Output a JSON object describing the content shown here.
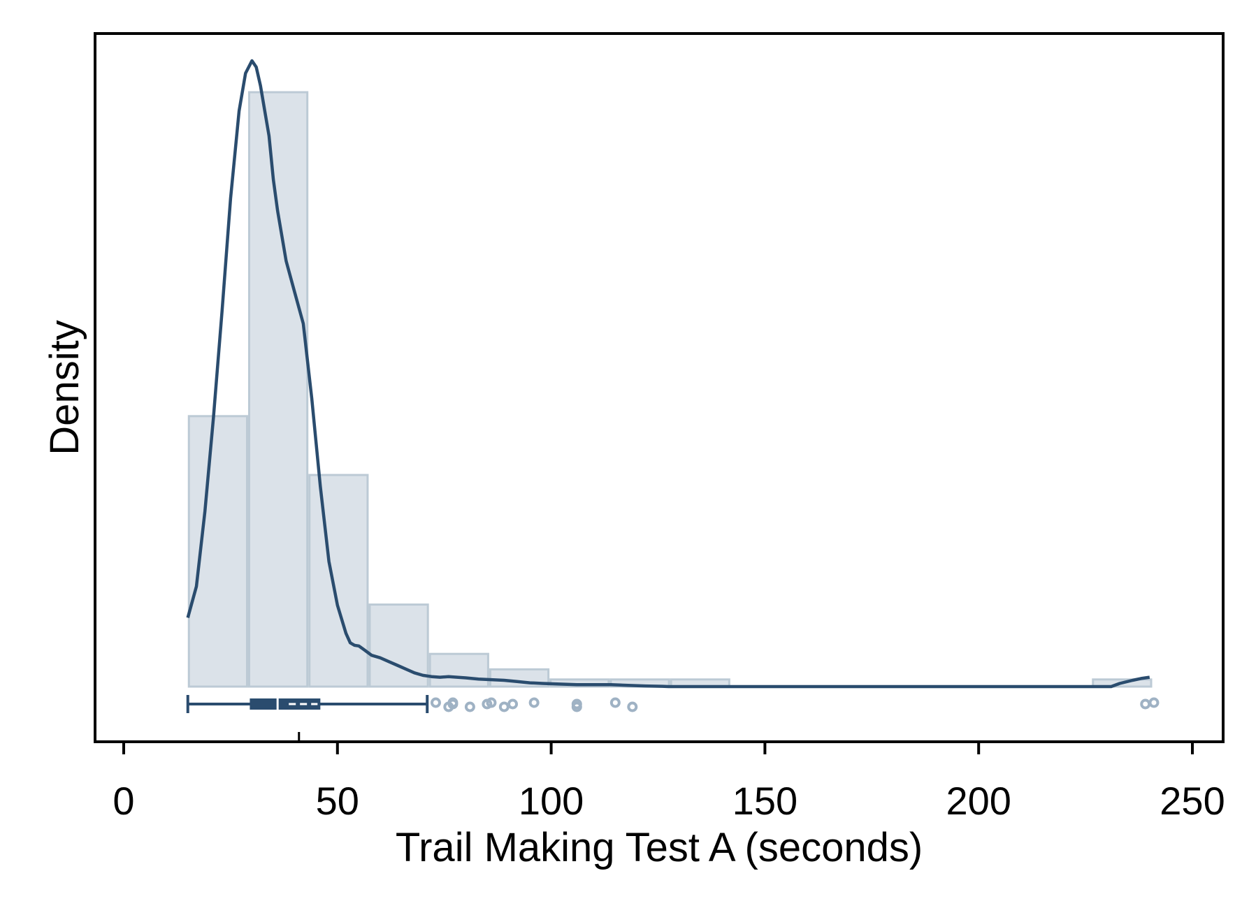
{
  "chart_data": {
    "type": "histogram",
    "xlabel": "Trail Making Test A (seconds)",
    "ylabel": "Density",
    "xlim": [
      -7,
      257
    ],
    "x_ticks": [
      0,
      50,
      100,
      150,
      200,
      250
    ],
    "x_tick_labels": [
      "0",
      "50",
      "100",
      "150",
      "200",
      "250"
    ],
    "y_ticks_shown": false,
    "grid": false,
    "colors": {
      "bar_fill": "#dbe2e9",
      "bar_stroke": "#bccad5",
      "line": "#2a4c6e",
      "outlier": "#9fb2c4",
      "frame": "#000000"
    },
    "histogram": {
      "bin_edges": [
        15,
        29.1,
        43.2,
        57.3,
        71.4,
        85.5,
        99.6,
        113.7,
        127.8,
        141.9,
        156,
        170.1,
        184.2,
        198.3,
        212.4,
        226.5,
        240.6
      ],
      "relative_heights": [
        0.455,
        1.0,
        0.356,
        0.138,
        0.055,
        0.029,
        0.012,
        0.012,
        0.012,
        0,
        0,
        0,
        0,
        0,
        0,
        0.012
      ]
    },
    "density_curve": {
      "x": [
        15,
        17,
        19,
        21,
        23,
        25,
        27,
        28.5,
        30,
        31,
        32,
        33,
        34,
        35,
        36,
        37,
        38,
        40,
        42,
        44,
        46,
        48,
        50,
        52,
        53,
        54,
        55,
        56,
        57,
        58,
        60,
        62,
        64,
        66,
        68,
        70,
        72,
        74,
        76,
        78,
        80,
        83,
        86,
        89,
        92,
        95,
        98,
        102,
        106,
        110,
        114,
        118,
        122,
        126,
        127.5,
        140,
        160,
        180,
        200,
        220,
        231,
        233,
        236,
        238,
        240
      ],
      "y": [
        0.11,
        0.16,
        0.28,
        0.43,
        0.6,
        0.78,
        0.92,
        0.98,
        1.0,
        0.99,
        0.96,
        0.92,
        0.88,
        0.81,
        0.76,
        0.72,
        0.68,
        0.63,
        0.58,
        0.46,
        0.32,
        0.2,
        0.13,
        0.085,
        0.07,
        0.066,
        0.065,
        0.06,
        0.055,
        0.05,
        0.046,
        0.04,
        0.034,
        0.028,
        0.022,
        0.018,
        0.016,
        0.015,
        0.016,
        0.015,
        0.014,
        0.012,
        0.011,
        0.01,
        0.008,
        0.006,
        0.005,
        0.004,
        0.003,
        0.003,
        0.003,
        0.002,
        0.001,
        0.0005,
        0,
        0,
        0,
        0,
        0,
        0,
        0,
        0.005,
        0.01,
        0.013,
        0.015
      ]
    },
    "boxplot": {
      "whisker_low": 15,
      "q1": 29.5,
      "median": 36,
      "mean": 41,
      "q3": 46,
      "whisker_high": 71,
      "outliers": [
        73,
        76,
        77,
        77,
        81,
        85,
        86,
        89,
        91,
        96,
        106,
        106,
        115,
        119,
        239,
        241
      ]
    }
  }
}
